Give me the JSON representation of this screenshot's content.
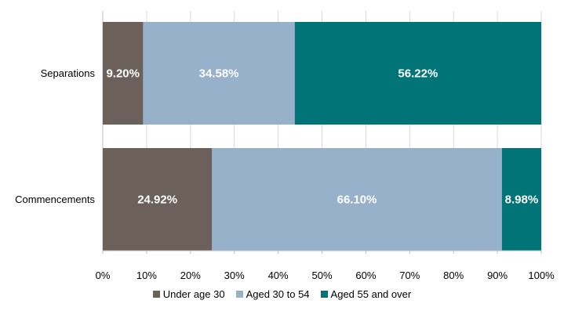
{
  "chart_data": {
    "type": "bar",
    "orientation": "horizontal",
    "stacked": "percent",
    "categories": [
      "Separations",
      "Commencements"
    ],
    "series": [
      {
        "name": "Under age 30",
        "values": [
          9.2,
          24.92
        ],
        "labels": [
          "9.20%",
          "24.92%"
        ],
        "color": "#6b615a"
      },
      {
        "name": "Aged 30 to 54",
        "values": [
          34.58,
          66.1
        ],
        "labels": [
          "34.58%",
          "66.10%"
        ],
        "color": "#98b1ca"
      },
      {
        "name": "Aged 55 and over",
        "values": [
          56.22,
          8.98
        ],
        "labels": [
          "56.22%",
          "8.98%"
        ],
        "color": "#007477"
      }
    ],
    "xlim": [
      0,
      100
    ],
    "xticks": [
      "0%",
      "10%",
      "20%",
      "30%",
      "40%",
      "50%",
      "60%",
      "70%",
      "80%",
      "90%",
      "100%"
    ],
    "gridlines": "vertical",
    "legend_position": "bottom"
  }
}
